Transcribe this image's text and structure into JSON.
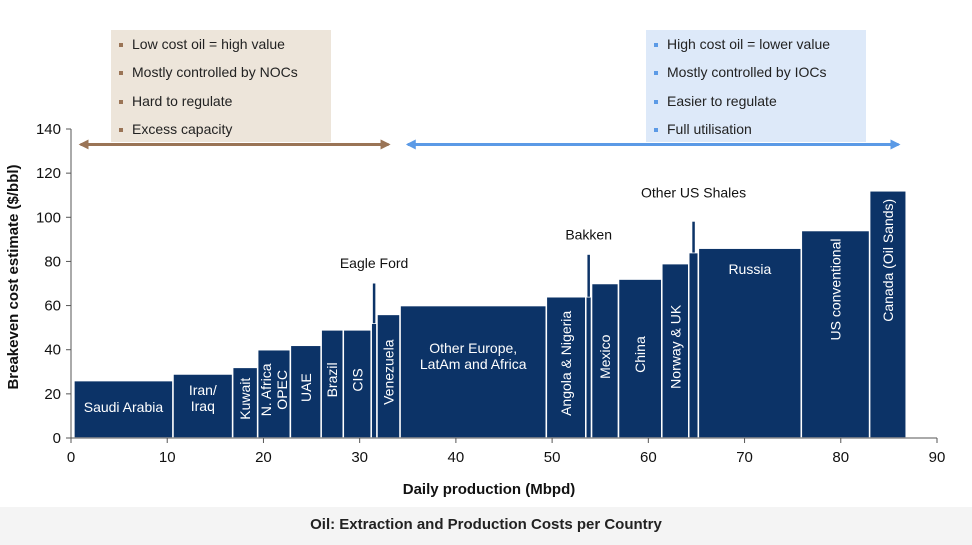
{
  "caption": "Oil: Extraction and Production Costs per Country",
  "low_cost_box": {
    "items": [
      "Low cost oil = high value",
      "Mostly controlled by NOCs",
      "Hard to regulate",
      "Excess capacity"
    ],
    "color": "#9a7456",
    "arrow_x_range": [
      1,
      33
    ]
  },
  "high_cost_box": {
    "items": [
      "High cost oil = lower value",
      "Mostly controlled by IOCs",
      "Easier to regulate",
      "Full utilisation"
    ],
    "color": "#5b9ae6",
    "arrow_x_range": [
      35,
      86
    ]
  },
  "chart_data": {
    "type": "bar",
    "subtype": "variable-width bars (cost curve)",
    "title": "",
    "xlabel": "Daily production  (Mbpd)",
    "ylabel": "Breakeven  cost estimate ($/bbl)",
    "xlim": [
      0,
      90
    ],
    "ylim": [
      0,
      140
    ],
    "xticks": [
      0,
      10,
      20,
      30,
      40,
      50,
      60,
      70,
      80,
      90
    ],
    "yticks": [
      0,
      20,
      40,
      60,
      80,
      100,
      120,
      140
    ],
    "grid": false,
    "bar_color": "#0c3367",
    "bars": [
      {
        "label": "Saudi Arabia",
        "x_start": 0.3,
        "x_end": 10.6,
        "value": 26,
        "orientation": "horizontal"
      },
      {
        "label": "Iran/\nIraq",
        "x_start": 10.6,
        "x_end": 16.8,
        "value": 29,
        "orientation": "horizontal"
      },
      {
        "label": "Kuwait",
        "x_start": 16.8,
        "x_end": 19.4,
        "value": 32,
        "orientation": "vertical"
      },
      {
        "label": "N. Africa\nOPEC",
        "x_start": 19.4,
        "x_end": 22.8,
        "value": 40,
        "orientation": "vertical"
      },
      {
        "label": "UAE",
        "x_start": 22.8,
        "x_end": 26.0,
        "value": 42,
        "orientation": "vertical"
      },
      {
        "label": "Brazil",
        "x_start": 26.0,
        "x_end": 28.3,
        "value": 49,
        "orientation": "vertical"
      },
      {
        "label": "CIS",
        "x_start": 28.3,
        "x_end": 31.2,
        "value": 49,
        "orientation": "vertical"
      },
      {
        "label": "",
        "x_start": 31.2,
        "x_end": 31.8,
        "value": 52,
        "orientation": "vertical"
      },
      {
        "label": "Venezuela",
        "x_start": 31.8,
        "x_end": 34.2,
        "value": 56,
        "orientation": "vertical"
      },
      {
        "label": "Other Europe,\nLatAm and Africa",
        "x_start": 34.2,
        "x_end": 49.4,
        "value": 60,
        "orientation": "horizontal"
      },
      {
        "label": "Angola & Nigeria",
        "x_start": 49.4,
        "x_end": 53.5,
        "value": 64,
        "orientation": "vertical"
      },
      {
        "label": "",
        "x_start": 53.5,
        "x_end": 54.1,
        "value": 64,
        "orientation": "vertical"
      },
      {
        "label": "Mexico",
        "x_start": 54.1,
        "x_end": 56.9,
        "value": 70,
        "orientation": "vertical"
      },
      {
        "label": "China",
        "x_start": 56.9,
        "x_end": 61.4,
        "value": 72,
        "orientation": "vertical"
      },
      {
        "label": "Norway & UK",
        "x_start": 61.4,
        "x_end": 64.2,
        "value": 79,
        "orientation": "vertical"
      },
      {
        "label": "",
        "x_start": 64.2,
        "x_end": 65.2,
        "value": 84,
        "orientation": "vertical"
      },
      {
        "label": "Russia",
        "x_start": 65.2,
        "x_end": 75.9,
        "value": 86,
        "orientation": "horizontal"
      },
      {
        "label": "US conventional",
        "x_start": 75.9,
        "x_end": 83.0,
        "value": 94,
        "orientation": "vertical"
      },
      {
        "label": "Canada (Oil Sands)",
        "x_start": 83.0,
        "x_end": 86.8,
        "value": 112,
        "orientation": "vertical"
      }
    ],
    "annotations": [
      {
        "text": "Eagle Ford",
        "x": 31.5,
        "line_from": 52,
        "line_to": 70,
        "text_y": 77
      },
      {
        "text": "Bakken",
        "x": 53.8,
        "line_from": 64,
        "line_to": 83,
        "text_y": 90
      },
      {
        "text": "Other US Shales",
        "x": 64.7,
        "line_from": 84,
        "line_to": 98,
        "text_y": 109
      }
    ]
  }
}
